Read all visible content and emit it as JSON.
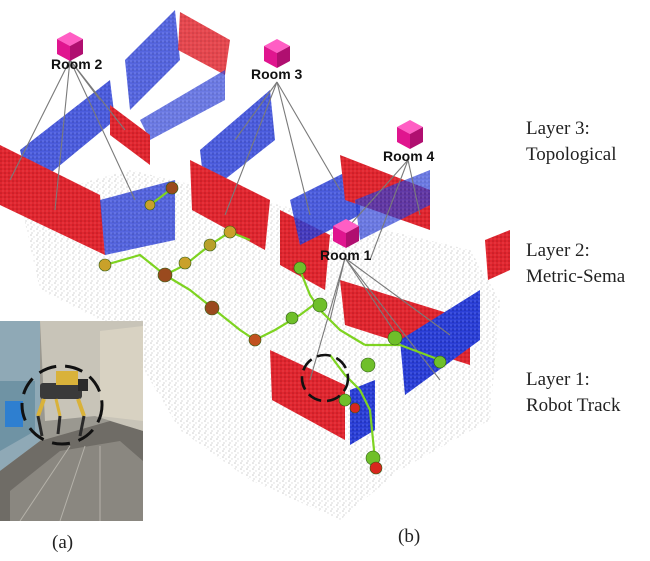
{
  "rooms": [
    {
      "id": "room-2",
      "label": "Room 2"
    },
    {
      "id": "room-3",
      "label": "Room 3"
    },
    {
      "id": "room-4",
      "label": "Room 4"
    },
    {
      "id": "room-1",
      "label": "Room 1"
    }
  ],
  "layers": [
    {
      "line1": "Layer 3:",
      "line2": "Topological"
    },
    {
      "line1": "Layer 2:",
      "line2": "Metric-Sema"
    },
    {
      "line1": "Layer 1:",
      "line2": "Robot Track"
    }
  ],
  "captions": {
    "a": "(a)",
    "b": "(b)"
  },
  "colors": {
    "wall_red": "#e0262f",
    "wall_blue": "#2b3fd6",
    "room_node": "#e0158f",
    "trajectory": "#7ed321",
    "pose_node": "#6fbf2a",
    "pose_node_red": "#d7261e",
    "point_cloud": "#bdbdbd"
  }
}
